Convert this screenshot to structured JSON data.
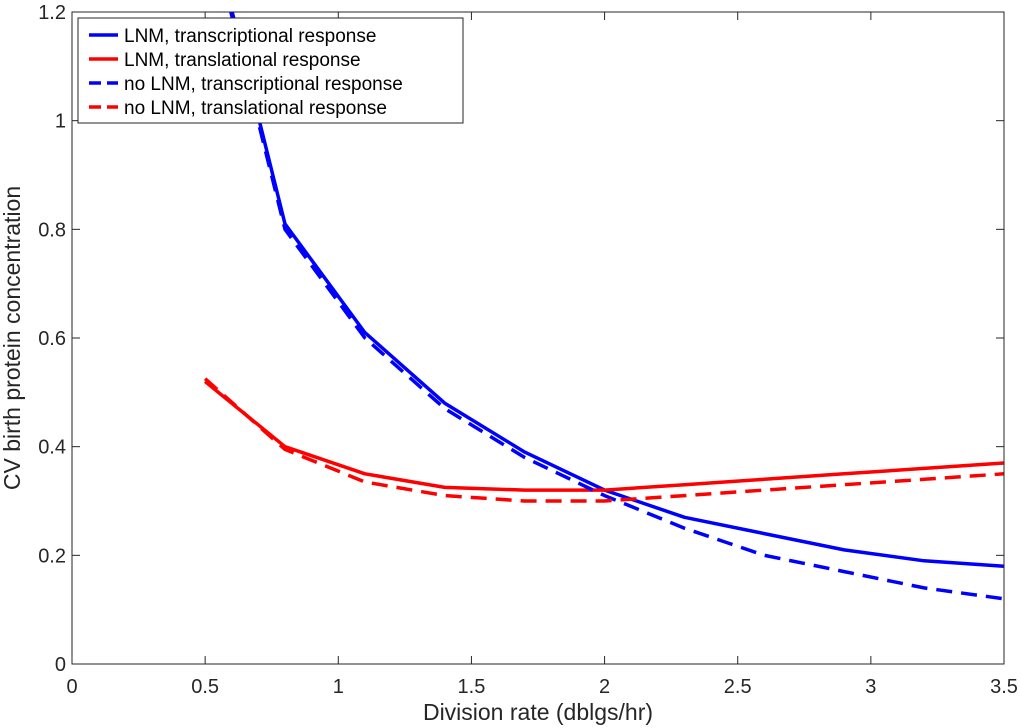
{
  "chart_data": {
    "type": "line",
    "title": "",
    "xlabel": "Division rate (dblgs/hr)",
    "ylabel": "CV birth protein concentration",
    "xlim": [
      0,
      3.5
    ],
    "ylim": [
      0,
      1.2
    ],
    "xticks": [
      "0",
      "0.5",
      "1",
      "1.5",
      "2",
      "2.5",
      "3",
      "3.5"
    ],
    "yticks": [
      "0",
      "0.2",
      "0.4",
      "0.6",
      "0.8",
      "1",
      "1.2"
    ],
    "grid": false,
    "legend_position": "top-left",
    "series": [
      {
        "name": "LNM, transcriptional response",
        "color": "#0000ff",
        "style": "solid",
        "x": [
          0.5,
          0.8,
          1.1,
          1.4,
          1.7,
          2.0,
          2.3,
          2.6,
          2.9,
          3.2,
          3.5
        ],
        "y": [
          1.4,
          0.81,
          0.61,
          0.48,
          0.39,
          0.32,
          0.27,
          0.24,
          0.21,
          0.19,
          0.18
        ]
      },
      {
        "name": "LNM, translational response",
        "color": "#ff0000",
        "style": "solid",
        "x": [
          0.5,
          0.8,
          1.1,
          1.4,
          1.7,
          2.0,
          2.3,
          2.6,
          2.9,
          3.2,
          3.5
        ],
        "y": [
          0.52,
          0.4,
          0.35,
          0.325,
          0.32,
          0.32,
          0.33,
          0.34,
          0.35,
          0.36,
          0.37
        ]
      },
      {
        "name": "no LNM, transcriptional response",
        "color": "#0000ff",
        "style": "dashed",
        "x": [
          0.5,
          0.8,
          1.1,
          1.4,
          1.7,
          2.0,
          2.3,
          2.6,
          2.9,
          3.2,
          3.5
        ],
        "y": [
          1.39,
          0.8,
          0.6,
          0.47,
          0.38,
          0.31,
          0.25,
          0.2,
          0.17,
          0.14,
          0.12
        ]
      },
      {
        "name": "no LNM, translational response",
        "color": "#ff0000",
        "style": "dashed",
        "x": [
          0.5,
          0.8,
          1.1,
          1.4,
          1.7,
          2.0,
          2.3,
          2.6,
          2.9,
          3.2,
          3.5
        ],
        "y": [
          0.525,
          0.395,
          0.335,
          0.31,
          0.3,
          0.3,
          0.31,
          0.32,
          0.33,
          0.34,
          0.35
        ]
      }
    ]
  }
}
